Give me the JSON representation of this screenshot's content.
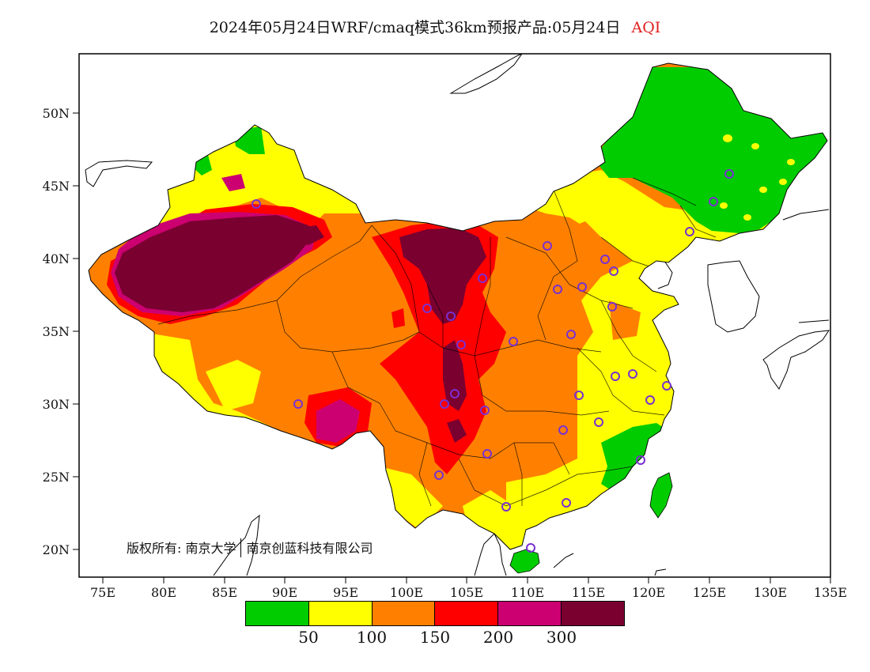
{
  "title": {
    "main": "2024年05月24日WRF/cmaq模式36km预报产品:05月24日",
    "variable": "AQI"
  },
  "axes": {
    "lat_labels": [
      "50N",
      "45N",
      "40N",
      "35N",
      "30N",
      "25N",
      "20N"
    ],
    "lon_labels": [
      "75E",
      "80E",
      "85E",
      "90E",
      "95E",
      "100E",
      "105E",
      "110E",
      "115E",
      "120E",
      "125E",
      "130E",
      "135E"
    ]
  },
  "copyright": {
    "owner1": "版权所有: 南京大学",
    "owner2": "南京创蓝科技有限公司"
  },
  "legend": {
    "colors": [
      "#00cc00",
      "#ffff00",
      "#ff8000",
      "#ff0000",
      "#cc0070",
      "#7a0030"
    ],
    "labels": [
      "50",
      "100",
      "150",
      "200",
      "300"
    ]
  },
  "colors": {
    "good": "#00cc00",
    "moderate": "#ffff00",
    "sensitive": "#ff8000",
    "unhealthy": "#ff0000",
    "very_unhealthy": "#cc0070",
    "hazardous": "#7a0030",
    "station_marker": "#7a30d0"
  }
}
